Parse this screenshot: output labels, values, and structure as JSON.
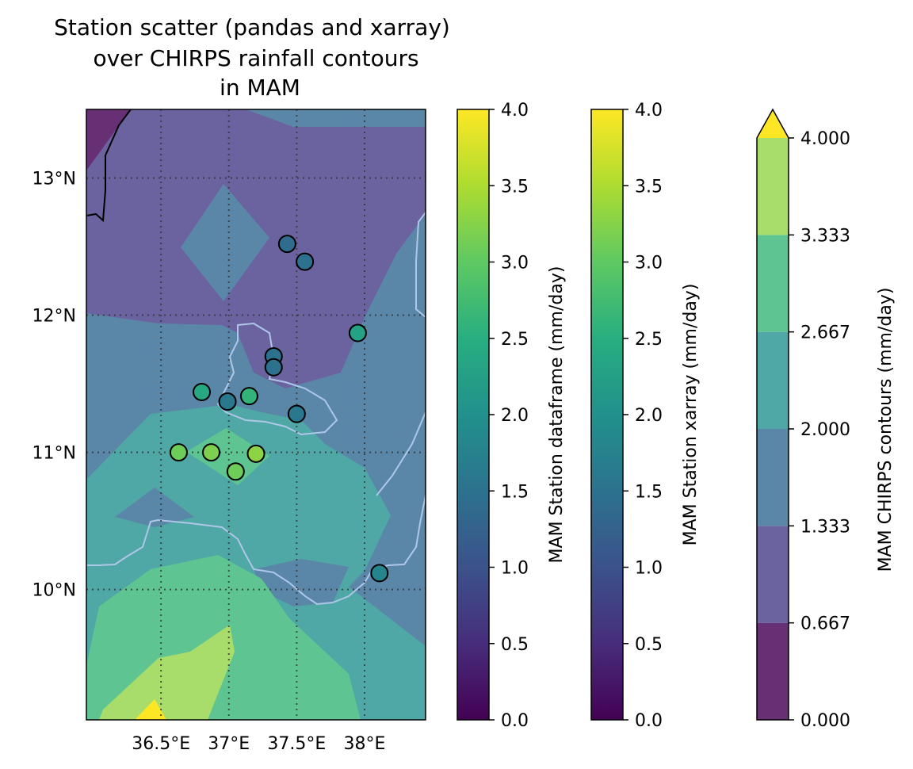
{
  "chart_data": {
    "type": "scatter",
    "title_lines": [
      "Station scatter (pandas and xarray)",
      "over CHIRPS rainfall contours",
      "in MAM"
    ],
    "map": {
      "x_ticks": [
        {
          "value": 36.5,
          "label": "36.5°E"
        },
        {
          "value": 37.0,
          "label": "37°E"
        },
        {
          "value": 37.5,
          "label": "37.5°E"
        },
        {
          "value": 38.0,
          "label": "38°E"
        }
      ],
      "y_ticks": [
        {
          "value": 10,
          "label": "10°N"
        },
        {
          "value": 11,
          "label": "11°N"
        },
        {
          "value": 12,
          "label": "12°N"
        },
        {
          "value": 13,
          "label": "13°N"
        }
      ],
      "xlim": [
        35.95,
        38.45
      ],
      "ylim": [
        9.05,
        13.5
      ],
      "grid": true
    },
    "stations": [
      {
        "lon": 37.43,
        "lat": 12.52,
        "value": 1.4
      },
      {
        "lon": 37.56,
        "lat": 12.39,
        "value": 1.5
      },
      {
        "lon": 37.95,
        "lat": 11.87,
        "value": 2.3
      },
      {
        "lon": 37.33,
        "lat": 11.7,
        "value": 1.5
      },
      {
        "lon": 37.33,
        "lat": 11.62,
        "value": 1.5
      },
      {
        "lon": 36.8,
        "lat": 11.44,
        "value": 2.4
      },
      {
        "lon": 37.15,
        "lat": 11.41,
        "value": 2.6
      },
      {
        "lon": 36.99,
        "lat": 11.37,
        "value": 1.6
      },
      {
        "lon": 37.5,
        "lat": 11.28,
        "value": 1.6
      },
      {
        "lon": 36.63,
        "lat": 11.0,
        "value": 3.1
      },
      {
        "lon": 36.87,
        "lat": 11.0,
        "value": 3.2
      },
      {
        "lon": 37.2,
        "lat": 10.99,
        "value": 3.3
      },
      {
        "lon": 37.05,
        "lat": 10.86,
        "value": 3.1
      },
      {
        "lon": 38.11,
        "lat": 10.12,
        "value": 1.8
      }
    ],
    "colorbars": [
      {
        "label": "MAM Station dataframe (mm/day)",
        "range": [
          0,
          4
        ],
        "ticks": [
          "0.0",
          "0.5",
          "1.0",
          "1.5",
          "2.0",
          "2.5",
          "3.0",
          "3.5",
          "4.0"
        ]
      },
      {
        "label": "MAM Station xarray (mm/day)",
        "range": [
          0,
          4
        ],
        "ticks": [
          "0.0",
          "0.5",
          "1.0",
          "1.5",
          "2.0",
          "2.5",
          "3.0",
          "3.5",
          "4.0"
        ]
      },
      {
        "label": "MAM CHIRPS contours (mm/day)",
        "extend": "max",
        "levels": [
          "0.000",
          "0.667",
          "1.333",
          "2.000",
          "2.667",
          "3.333",
          "4.000"
        ],
        "level_colors": [
          "#672f74",
          "#6b62a0",
          "#5a87a8",
          "#4fa8a5",
          "#5ec592",
          "#a8dd6b"
        ],
        "extend_color": "#fde725"
      }
    ]
  }
}
